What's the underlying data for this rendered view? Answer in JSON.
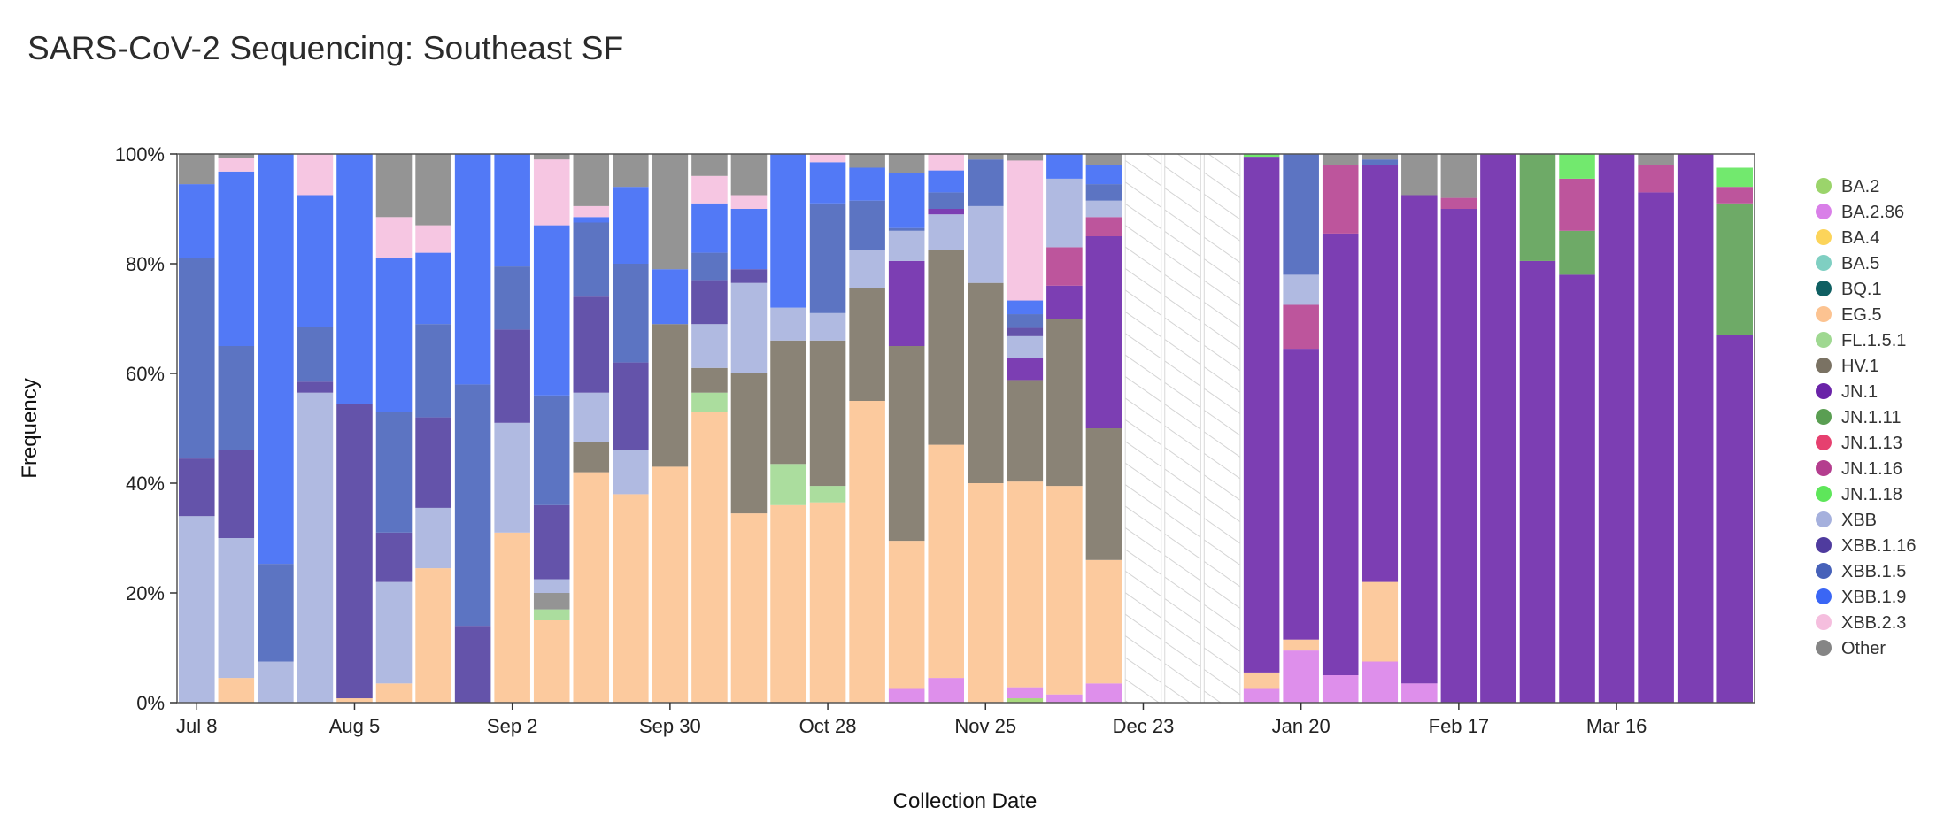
{
  "title": "SARS-CoV-2 Sequencing: Southeast SF",
  "chart_data": {
    "type": "bar",
    "stacked": true,
    "title": "SARS-CoV-2 Sequencing: Southeast SF",
    "xlabel": "Collection Date",
    "ylabel": "Frequency",
    "ylim": [
      0,
      100
    ],
    "yticks": [
      "0%",
      "20%",
      "40%",
      "60%",
      "80%",
      "100%"
    ],
    "xticks": [
      {
        "label": "Jul 8",
        "week": 0
      },
      {
        "label": "Aug 5",
        "week": 4
      },
      {
        "label": "Sep 2",
        "week": 8
      },
      {
        "label": "Sep 30",
        "week": 12
      },
      {
        "label": "Oct 28",
        "week": 16
      },
      {
        "label": "Nov 25",
        "week": 20
      },
      {
        "label": "Dec 23",
        "week": 24
      },
      {
        "label": "Jan 20",
        "week": 28
      },
      {
        "label": "Feb 17",
        "week": 32
      },
      {
        "label": "Mar 16",
        "week": 36
      }
    ],
    "num_weeks": 40,
    "no_data_weeks": [
      24,
      25,
      26
    ],
    "legend_position": "right",
    "variants": [
      {
        "name": "BA.2",
        "color": "#9bd46b"
      },
      {
        "name": "BA.2.86",
        "color": "#d97fe8"
      },
      {
        "name": "BA.4",
        "color": "#fcd45a"
      },
      {
        "name": "BA.5",
        "color": "#7fcfc2"
      },
      {
        "name": "BQ.1",
        "color": "#0f5f62"
      },
      {
        "name": "EG.5",
        "color": "#fcc391"
      },
      {
        "name": "FL.1.5.1",
        "color": "#9fd891"
      },
      {
        "name": "HV.1",
        "color": "#7a7263"
      },
      {
        "name": "JN.1",
        "color": "#6a23a8"
      },
      {
        "name": "JN.1.11",
        "color": "#5a9e52"
      },
      {
        "name": "JN.1.13",
        "color": "#e6406f"
      },
      {
        "name": "JN.1.16",
        "color": "#b43d8e"
      },
      {
        "name": "JN.1.18",
        "color": "#5ee65a"
      },
      {
        "name": "XBB",
        "color": "#a5b0dd"
      },
      {
        "name": "XBB.1.16",
        "color": "#4f3b9e"
      },
      {
        "name": "XBB.1.5",
        "color": "#4661b9"
      },
      {
        "name": "XBB.1.9",
        "color": "#3a66f5"
      },
      {
        "name": "XBB.2.3",
        "color": "#f5bede"
      },
      {
        "name": "Other",
        "color": "#858585"
      }
    ],
    "bars": [
      {
        "week": 0,
        "segments": [
          [
            "XBB",
            34
          ],
          [
            "XBB.1.16",
            10.5
          ],
          [
            "XBB.1.5",
            36.5
          ],
          [
            "XBB.1.9",
            13.5
          ],
          [
            "Other",
            5.5
          ]
        ]
      },
      {
        "week": 1,
        "segments": [
          [
            "EG.5",
            4.5
          ],
          [
            "XBB",
            25.5
          ],
          [
            "XBB.1.16",
            16
          ],
          [
            "XBB.1.5",
            19
          ],
          [
            "XBB.1.9",
            31.8
          ],
          [
            "XBB.2.3",
            2.5
          ],
          [
            "Other",
            0.7
          ]
        ]
      },
      {
        "week": 2,
        "segments": [
          [
            "XBB",
            7.5
          ],
          [
            "XBB.1.5",
            17.8
          ],
          [
            "XBB.1.9",
            74.7
          ]
        ]
      },
      {
        "week": 3,
        "segments": [
          [
            "XBB",
            56.5
          ],
          [
            "XBB.1.16",
            2
          ],
          [
            "XBB.1.5",
            10
          ],
          [
            "XBB.1.9",
            24
          ],
          [
            "XBB.2.3",
            7.5
          ]
        ]
      },
      {
        "week": 4,
        "segments": [
          [
            "EG.5",
            0.8
          ],
          [
            "XBB.1.16",
            53.7
          ],
          [
            "XBB.1.9",
            45.5
          ]
        ]
      },
      {
        "week": 5,
        "segments": [
          [
            "EG.5",
            3.5
          ],
          [
            "XBB",
            18.5
          ],
          [
            "XBB.1.16",
            9
          ],
          [
            "XBB.1.5",
            22
          ],
          [
            "XBB.1.9",
            28
          ],
          [
            "XBB.2.3",
            7.5
          ],
          [
            "Other",
            11.5
          ]
        ]
      },
      {
        "week": 6,
        "segments": [
          [
            "EG.5",
            24.5
          ],
          [
            "XBB",
            11
          ],
          [
            "XBB.1.16",
            16.5
          ],
          [
            "XBB.1.5",
            17
          ],
          [
            "XBB.1.9",
            13
          ],
          [
            "XBB.2.3",
            5
          ],
          [
            "Other",
            13
          ]
        ]
      },
      {
        "week": 7,
        "segments": [
          [
            "XBB.1.16",
            14
          ],
          [
            "XBB.1.5",
            44
          ],
          [
            "XBB.1.9",
            42
          ]
        ]
      },
      {
        "week": 8,
        "segments": [
          [
            "EG.5",
            31
          ],
          [
            "XBB",
            20
          ],
          [
            "XBB.1.16",
            17
          ],
          [
            "XBB.1.5",
            11.5
          ],
          [
            "XBB.1.9",
            20.5
          ]
        ]
      },
      {
        "week": 9,
        "segments": [
          [
            "EG.5",
            15
          ],
          [
            "FL.1.5.1",
            2
          ],
          [
            "Other",
            3
          ],
          [
            "XBB",
            2.5
          ],
          [
            "XBB.1.16",
            13.5
          ],
          [
            "XBB.1.5",
            20
          ],
          [
            "XBB.1.9",
            31
          ],
          [
            "XBB.2.3",
            12
          ],
          [
            "Other",
            1
          ]
        ]
      },
      {
        "week": 10,
        "segments": [
          [
            "EG.5",
            42
          ],
          [
            "HV.1",
            5.5
          ],
          [
            "XBB",
            9
          ],
          [
            "XBB.1.16",
            17.5
          ],
          [
            "XBB.1.5",
            13.5
          ],
          [
            "XBB.1.9",
            1
          ],
          [
            "XBB.2.3",
            2
          ],
          [
            "Other",
            9.5
          ]
        ]
      },
      {
        "week": 11,
        "segments": [
          [
            "EG.5",
            38
          ],
          [
            "XBB",
            8
          ],
          [
            "XBB.1.16",
            16
          ],
          [
            "XBB.1.5",
            18
          ],
          [
            "XBB.1.9",
            14
          ],
          [
            "Other",
            6
          ]
        ]
      },
      {
        "week": 12,
        "segments": [
          [
            "EG.5",
            43
          ],
          [
            "HV.1",
            26
          ],
          [
            "XBB.1.9",
            10
          ],
          [
            "Other",
            21
          ]
        ]
      },
      {
        "week": 13,
        "segments": [
          [
            "EG.5",
            53
          ],
          [
            "FL.1.5.1",
            3.5
          ],
          [
            "HV.1",
            4.5
          ],
          [
            "XBB",
            8
          ],
          [
            "XBB.1.16",
            8
          ],
          [
            "XBB.1.5",
            5
          ],
          [
            "XBB.1.9",
            9
          ],
          [
            "XBB.2.3",
            5
          ],
          [
            "Other",
            4
          ]
        ]
      },
      {
        "week": 14,
        "segments": [
          [
            "EG.5",
            34.5
          ],
          [
            "HV.1",
            25.5
          ],
          [
            "XBB",
            16.5
          ],
          [
            "XBB.1.16",
            2.5
          ],
          [
            "XBB.1.9",
            11
          ],
          [
            "XBB.2.3",
            2.5
          ],
          [
            "Other",
            7.5
          ]
        ]
      },
      {
        "week": 15,
        "segments": [
          [
            "EG.5",
            36
          ],
          [
            "FL.1.5.1",
            7.5
          ],
          [
            "HV.1",
            22.5
          ],
          [
            "XBB",
            6
          ],
          [
            "XBB.1.9",
            28
          ]
        ]
      },
      {
        "week": 16,
        "segments": [
          [
            "EG.5",
            36.5
          ],
          [
            "FL.1.5.1",
            3
          ],
          [
            "HV.1",
            26.5
          ],
          [
            "XBB",
            5
          ],
          [
            "XBB.1.5",
            20
          ],
          [
            "XBB.1.9",
            7.5
          ],
          [
            "XBB.2.3",
            1.5
          ]
        ]
      },
      {
        "week": 17,
        "segments": [
          [
            "EG.5",
            55
          ],
          [
            "HV.1",
            20.5
          ],
          [
            "XBB",
            7
          ],
          [
            "XBB.1.5",
            9
          ],
          [
            "XBB.1.9",
            6
          ],
          [
            "Other",
            2.5
          ]
        ]
      },
      {
        "week": 18,
        "segments": [
          [
            "BA.2.86",
            2.5
          ],
          [
            "EG.5",
            27
          ],
          [
            "HV.1",
            35.5
          ],
          [
            "JN.1",
            15.5
          ],
          [
            "XBB",
            5.5
          ],
          [
            "XBB.1.5",
            0.5
          ],
          [
            "XBB.1.9",
            10
          ],
          [
            "Other",
            3.5
          ]
        ]
      },
      {
        "week": 19,
        "segments": [
          [
            "BA.2.86",
            4.5
          ],
          [
            "EG.5",
            42.5
          ],
          [
            "HV.1",
            35.5
          ],
          [
            "XBB",
            6.5
          ],
          [
            "JN.1",
            1
          ],
          [
            "XBB.1.5",
            3
          ],
          [
            "XBB.1.9",
            4
          ],
          [
            "XBB.2.3",
            3
          ]
        ]
      },
      {
        "week": 20,
        "segments": [
          [
            "EG.5",
            40
          ],
          [
            "HV.1",
            36.5
          ],
          [
            "XBB",
            14
          ],
          [
            "XBB.1.5",
            8.5
          ],
          [
            "Other",
            1
          ]
        ]
      },
      {
        "week": 21,
        "segments": [
          [
            "BA.2",
            0.8
          ],
          [
            "BA.2.86",
            2
          ],
          [
            "EG.5",
            37.5
          ],
          [
            "HV.1",
            18.5
          ],
          [
            "JN.1",
            4
          ],
          [
            "XBB",
            4
          ],
          [
            "XBB.1.16",
            1.5
          ],
          [
            "XBB.1.5",
            2.5
          ],
          [
            "XBB.1.9",
            2.5
          ],
          [
            "XBB.2.3",
            25.5
          ],
          [
            "Other",
            1.2
          ]
        ]
      },
      {
        "week": 22,
        "segments": [
          [
            "BA.2.86",
            1.5
          ],
          [
            "EG.5",
            38
          ],
          [
            "HV.1",
            30.5
          ],
          [
            "JN.1",
            6
          ],
          [
            "JN.1.16",
            7
          ],
          [
            "XBB",
            12.5
          ],
          [
            "XBB.1.9",
            4.5
          ]
        ]
      },
      {
        "week": 23,
        "segments": [
          [
            "BA.2.86",
            3.5
          ],
          [
            "EG.5",
            22.5
          ],
          [
            "HV.1",
            24
          ],
          [
            "JN.1",
            35
          ],
          [
            "JN.1.16",
            3.5
          ],
          [
            "XBB",
            3
          ],
          [
            "XBB.1.5",
            3
          ],
          [
            "XBB.1.9",
            3.5
          ],
          [
            "Other",
            2
          ]
        ]
      },
      {
        "week": 27,
        "segments": [
          [
            "BA.2.86",
            2.5
          ],
          [
            "EG.5",
            3
          ],
          [
            "JN.1",
            94
          ],
          [
            "JN.1.18",
            0.5
          ]
        ]
      },
      {
        "week": 28,
        "segments": [
          [
            "BA.2.86",
            9.5
          ],
          [
            "EG.5",
            2
          ],
          [
            "JN.1",
            53
          ],
          [
            "JN.1.16",
            8
          ],
          [
            "XBB",
            5.5
          ],
          [
            "XBB.1.5",
            22
          ]
        ]
      },
      {
        "week": 29,
        "segments": [
          [
            "BA.2.86",
            5
          ],
          [
            "JN.1",
            80.5
          ],
          [
            "JN.1.16",
            12.5
          ],
          [
            "Other",
            2
          ]
        ]
      },
      {
        "week": 30,
        "segments": [
          [
            "BA.2.86",
            7.5
          ],
          [
            "EG.5",
            14.5
          ],
          [
            "JN.1",
            76
          ],
          [
            "XBB.1.5",
            1
          ],
          [
            "Other",
            1
          ]
        ]
      },
      {
        "week": 31,
        "segments": [
          [
            "BA.2.86",
            3.5
          ],
          [
            "JN.1",
            89
          ],
          [
            "Other",
            7.5
          ]
        ]
      },
      {
        "week": 32,
        "segments": [
          [
            "JN.1",
            90
          ],
          [
            "JN.1.16",
            2
          ],
          [
            "Other",
            8
          ]
        ]
      },
      {
        "week": 33,
        "segments": [
          [
            "JN.1",
            100
          ]
        ]
      },
      {
        "week": 34,
        "segments": [
          [
            "JN.1",
            80.5
          ],
          [
            "JN.1.11",
            19.5
          ]
        ]
      },
      {
        "week": 35,
        "segments": [
          [
            "JN.1",
            78
          ],
          [
            "JN.1.11",
            8
          ],
          [
            "JN.1.16",
            9.5
          ],
          [
            "JN.1.18",
            4.5
          ]
        ]
      },
      {
        "week": 36,
        "segments": [
          [
            "JN.1",
            100
          ]
        ]
      },
      {
        "week": 37,
        "segments": [
          [
            "JN.1",
            93
          ],
          [
            "JN.1.16",
            5
          ],
          [
            "Other",
            2
          ]
        ]
      },
      {
        "week": 38,
        "segments": [
          [
            "JN.1",
            100
          ]
        ]
      },
      {
        "week": 39,
        "segments": [
          [
            "JN.1",
            67
          ],
          [
            "JN.1.11",
            24
          ],
          [
            "JN.1.16",
            3
          ],
          [
            "JN.1.18",
            3.5
          ]
        ]
      }
    ]
  }
}
